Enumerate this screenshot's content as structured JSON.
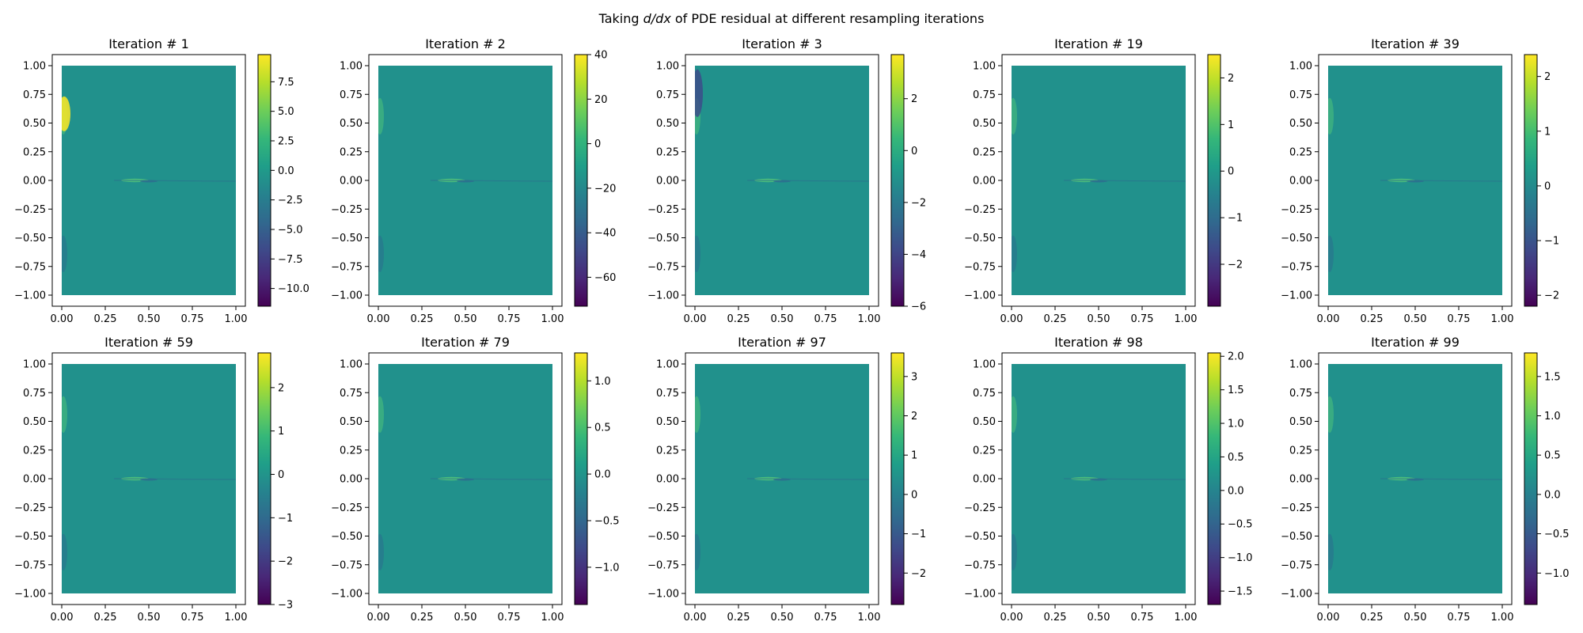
{
  "figure": {
    "title_prefix": "Taking ",
    "title_math": "d/dx",
    "title_suffix": " of PDE residual at different resampling iterations"
  },
  "chart_data": [
    {
      "type": "heatmap",
      "title": "Iteration # 1",
      "xlim": [
        0,
        1
      ],
      "ylim": [
        -1,
        1
      ],
      "xticks": [
        "0.00",
        "0.25",
        "0.50",
        "0.75",
        "1.00"
      ],
      "yticks": [
        "1.00",
        "0.75",
        "0.50",
        "0.25",
        "0.00",
        "-0.25",
        "-0.50",
        "-0.75",
        "-1.00"
      ],
      "colorbar": {
        "min": -11.5,
        "max": 9.8,
        "ticks": [
          7.5,
          5.0,
          2.5,
          0.0,
          -2.5,
          -5.0,
          -7.5,
          -10.0
        ],
        "labels": [
          "7.5",
          "5.0",
          "2.5",
          "0.0",
          "−2.5",
          "−5.0",
          "−7.5",
          "−10.0"
        ]
      }
    },
    {
      "type": "heatmap",
      "title": "Iteration # 2",
      "xlim": [
        0,
        1
      ],
      "ylim": [
        -1,
        1
      ],
      "xticks": [
        "0.00",
        "0.25",
        "0.50",
        "0.75",
        "1.00"
      ],
      "yticks": [
        "1.00",
        "0.75",
        "0.50",
        "0.25",
        "0.00",
        "-0.25",
        "-0.50",
        "-0.75",
        "-1.00"
      ],
      "colorbar": {
        "min": -73,
        "max": 40,
        "ticks": [
          40,
          20,
          0,
          -20,
          -40,
          -60
        ],
        "labels": [
          "40",
          "20",
          "0",
          "−20",
          "−40",
          "−60"
        ]
      }
    },
    {
      "type": "heatmap",
      "title": "Iteration # 3",
      "xlim": [
        0,
        1
      ],
      "ylim": [
        -1,
        1
      ],
      "xticks": [
        "0.00",
        "0.25",
        "0.50",
        "0.75",
        "1.00"
      ],
      "yticks": [
        "1.00",
        "0.75",
        "0.50",
        "0.25",
        "0.00",
        "-0.25",
        "-0.50",
        "-0.75",
        "-1.00"
      ],
      "colorbar": {
        "min": -6,
        "max": 3.7,
        "ticks": [
          2,
          0,
          -2,
          -4,
          -6
        ],
        "labels": [
          "2",
          "0",
          "−2",
          "−4",
          "−6"
        ]
      }
    },
    {
      "type": "heatmap",
      "title": "Iteration # 19",
      "xlim": [
        0,
        1
      ],
      "ylim": [
        -1,
        1
      ],
      "xticks": [
        "0.00",
        "0.25",
        "0.50",
        "0.75",
        "1.00"
      ],
      "yticks": [
        "1.00",
        "0.75",
        "0.50",
        "0.25",
        "0.00",
        "-0.25",
        "-0.50",
        "-0.75",
        "-1.00"
      ],
      "colorbar": {
        "min": -2.9,
        "max": 2.5,
        "ticks": [
          2,
          1,
          0,
          -1,
          -2
        ],
        "labels": [
          "2",
          "1",
          "0",
          "−1",
          "−2"
        ]
      }
    },
    {
      "type": "heatmap",
      "title": "Iteration # 39",
      "xlim": [
        0,
        1
      ],
      "ylim": [
        -1,
        1
      ],
      "xticks": [
        "0.00",
        "0.25",
        "0.50",
        "0.75",
        "1.00"
      ],
      "yticks": [
        "1.00",
        "0.75",
        "0.50",
        "0.25",
        "0.00",
        "-0.25",
        "-0.50",
        "-0.75",
        "-1.00"
      ],
      "colorbar": {
        "min": -2.2,
        "max": 2.4,
        "ticks": [
          2,
          1,
          0,
          -1,
          -2
        ],
        "labels": [
          "2",
          "1",
          "0",
          "−1",
          "−2"
        ]
      }
    },
    {
      "type": "heatmap",
      "title": "Iteration # 59",
      "xlim": [
        0,
        1
      ],
      "ylim": [
        -1,
        1
      ],
      "xticks": [
        "0.00",
        "0.25",
        "0.50",
        "0.75",
        "1.00"
      ],
      "yticks": [
        "1.00",
        "0.75",
        "0.50",
        "0.25",
        "0.00",
        "-0.25",
        "-0.50",
        "-0.75",
        "-1.00"
      ],
      "colorbar": {
        "min": -3,
        "max": 2.8,
        "ticks": [
          2,
          1,
          0,
          -1,
          -2,
          -3
        ],
        "labels": [
          "2",
          "1",
          "0",
          "−1",
          "−2",
          "−3"
        ]
      }
    },
    {
      "type": "heatmap",
      "title": "Iteration # 79",
      "xlim": [
        0,
        1
      ],
      "ylim": [
        -1,
        1
      ],
      "xticks": [
        "0.00",
        "0.25",
        "0.50",
        "0.75",
        "1.00"
      ],
      "yticks": [
        "1.00",
        "0.75",
        "0.50",
        "0.25",
        "0.00",
        "-0.25",
        "-0.50",
        "-0.75",
        "-1.00"
      ],
      "colorbar": {
        "min": -1.4,
        "max": 1.3,
        "ticks": [
          1.0,
          0.5,
          0.0,
          -0.5,
          -1.0
        ],
        "labels": [
          "1.0",
          "0.5",
          "0.0",
          "−0.5",
          "−1.0"
        ]
      }
    },
    {
      "type": "heatmap",
      "title": "Iteration # 97",
      "xlim": [
        0,
        1
      ],
      "ylim": [
        -1,
        1
      ],
      "xticks": [
        "0.00",
        "0.25",
        "0.50",
        "0.75",
        "1.00"
      ],
      "yticks": [
        "1.00",
        "0.75",
        "0.50",
        "0.25",
        "0.00",
        "-0.25",
        "-0.50",
        "-0.75",
        "-1.00"
      ],
      "colorbar": {
        "min": -2.8,
        "max": 3.6,
        "ticks": [
          3,
          2,
          1,
          0,
          -1,
          -2
        ],
        "labels": [
          "3",
          "2",
          "1",
          "0",
          "−1",
          "−2"
        ]
      }
    },
    {
      "type": "heatmap",
      "title": "Iteration # 98",
      "xlim": [
        0,
        1
      ],
      "ylim": [
        -1,
        1
      ],
      "xticks": [
        "0.00",
        "0.25",
        "0.50",
        "0.75",
        "1.00"
      ],
      "yticks": [
        "1.00",
        "0.75",
        "0.50",
        "0.25",
        "0.00",
        "-0.25",
        "-0.50",
        "-0.75",
        "-1.00"
      ],
      "colorbar": {
        "min": -1.7,
        "max": 2.05,
        "ticks": [
          2.0,
          1.5,
          1.0,
          0.5,
          0.0,
          -0.5,
          -1.0,
          -1.5
        ],
        "labels": [
          "2.0",
          "1.5",
          "1.0",
          "0.5",
          "0.0",
          "−0.5",
          "−1.0",
          "−1.5"
        ]
      }
    },
    {
      "type": "heatmap",
      "title": "Iteration # 99",
      "xlim": [
        0,
        1
      ],
      "ylim": [
        -1,
        1
      ],
      "xticks": [
        "0.00",
        "0.25",
        "0.50",
        "0.75",
        "1.00"
      ],
      "yticks": [
        "1.00",
        "0.75",
        "0.50",
        "0.25",
        "0.00",
        "-0.25",
        "-0.50",
        "-0.75",
        "-1.00"
      ],
      "colorbar": {
        "min": -1.4,
        "max": 1.8,
        "ticks": [
          1.5,
          1.0,
          0.5,
          0.0,
          -0.5,
          -1.0
        ],
        "labels": [
          "1.5",
          "1.0",
          "0.5",
          "0.0",
          "−0.5",
          "−1.0"
        ]
      }
    }
  ],
  "colors": {
    "viridis": [
      "#440154",
      "#482878",
      "#3e4989",
      "#31688e",
      "#26828e",
      "#1f9e89",
      "#35b779",
      "#6ece58",
      "#b5de2b",
      "#fde725"
    ],
    "field": "#21918c",
    "light_band": "#4fc27a",
    "dark_band": "#2c6f8e"
  }
}
